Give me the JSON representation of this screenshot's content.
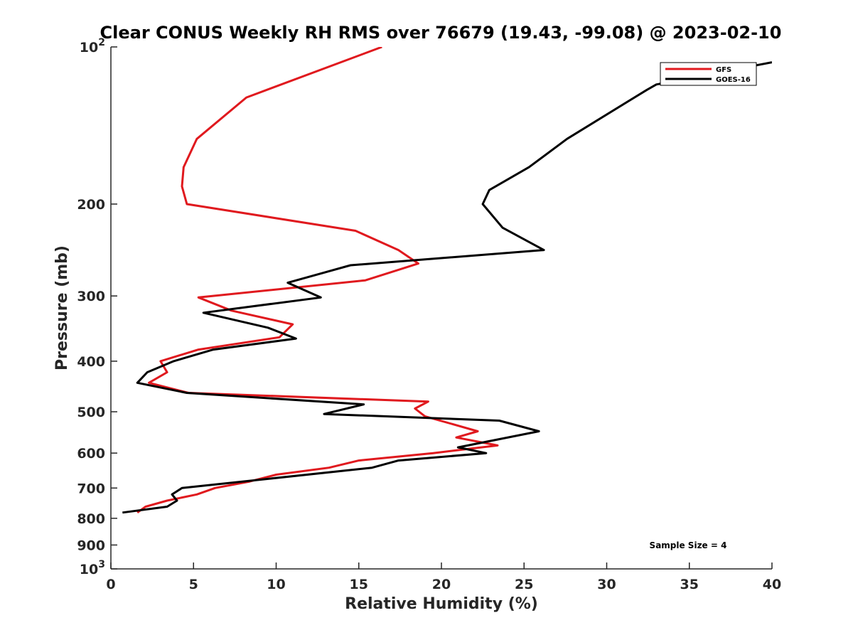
{
  "chart_data": {
    "type": "line",
    "title": "Clear CONUS Weekly RH RMS over 76679 (19.43, -99.08) @ 2023-02-10",
    "xlabel": "Relative Humidity (%)",
    "ylabel": "Pressure (mb)",
    "xlim": [
      0,
      40
    ],
    "ylim": [
      100,
      1000
    ],
    "y_scale": "log",
    "y_inverted": true,
    "x_ticks": [
      "0",
      "5",
      "10",
      "15",
      "20",
      "25",
      "30",
      "35",
      "40"
    ],
    "y_ticks": [
      {
        "value": 100,
        "base": "10",
        "exp": "2"
      },
      {
        "value": 200,
        "label": "200"
      },
      {
        "value": 300,
        "label": "300"
      },
      {
        "value": 400,
        "label": "400"
      },
      {
        "value": 500,
        "label": "500"
      },
      {
        "value": 600,
        "label": "600"
      },
      {
        "value": 700,
        "label": "700"
      },
      {
        "value": 800,
        "label": "800"
      },
      {
        "value": 900,
        "label": "900"
      },
      {
        "value": 1000,
        "base": "10",
        "exp": "3"
      }
    ],
    "legend_position": "top-right",
    "annotation": "Sample Size = 4",
    "series": [
      {
        "name": "GFS",
        "color": "#e0191e",
        "points": [
          [
            16.4,
            100
          ],
          [
            8.2,
            125
          ],
          [
            5.2,
            150
          ],
          [
            4.4,
            170
          ],
          [
            4.3,
            185
          ],
          [
            4.6,
            200
          ],
          [
            14.8,
            225
          ],
          [
            17.4,
            245
          ],
          [
            18.6,
            260
          ],
          [
            15.4,
            280
          ],
          [
            5.3,
            302
          ],
          [
            7.3,
            320
          ],
          [
            11.0,
            340
          ],
          [
            10.2,
            360
          ],
          [
            5.3,
            380
          ],
          [
            3.0,
            400
          ],
          [
            3.4,
            420
          ],
          [
            2.3,
            440
          ],
          [
            4.7,
            460
          ],
          [
            19.2,
            478
          ],
          [
            18.4,
            493
          ],
          [
            19.0,
            510
          ],
          [
            22.2,
            545
          ],
          [
            20.9,
            560
          ],
          [
            23.4,
            580
          ],
          [
            19.5,
            600
          ],
          [
            15.0,
            620
          ],
          [
            13.2,
            640
          ],
          [
            10.0,
            660
          ],
          [
            8.4,
            680
          ],
          [
            6.3,
            700
          ],
          [
            5.2,
            720
          ],
          [
            3.4,
            740
          ],
          [
            2.1,
            760
          ],
          [
            1.6,
            780
          ]
        ]
      },
      {
        "name": "GOES-16",
        "color": "#000000",
        "points": [
          [
            40.0,
            107
          ],
          [
            33.0,
            118
          ],
          [
            32.4,
            121
          ],
          [
            27.6,
            150
          ],
          [
            25.3,
            170
          ],
          [
            22.9,
            188
          ],
          [
            22.5,
            200
          ],
          [
            23.7,
            222
          ],
          [
            26.2,
            245
          ],
          [
            14.5,
            262
          ],
          [
            10.7,
            283
          ],
          [
            12.7,
            302
          ],
          [
            5.6,
            323
          ],
          [
            9.5,
            345
          ],
          [
            11.2,
            362
          ],
          [
            6.2,
            380
          ],
          [
            3.8,
            400
          ],
          [
            2.2,
            420
          ],
          [
            1.6,
            440
          ],
          [
            4.6,
            460
          ],
          [
            15.3,
            484
          ],
          [
            12.9,
            505
          ],
          [
            23.5,
            520
          ],
          [
            25.9,
            545
          ],
          [
            21.0,
            585
          ],
          [
            22.7,
            600
          ],
          [
            17.4,
            620
          ],
          [
            15.8,
            640
          ],
          [
            4.3,
            700
          ],
          [
            3.7,
            720
          ],
          [
            4.0,
            740
          ],
          [
            3.4,
            760
          ],
          [
            0.7,
            780
          ]
        ]
      }
    ]
  }
}
